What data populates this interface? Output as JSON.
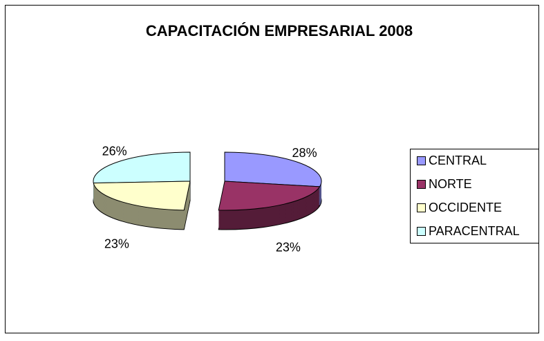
{
  "chart_data": {
    "type": "pie3d",
    "title": "CAPACITACIÓN EMPRESARIAL 2008",
    "categories": [
      "CENTRAL",
      "NORTE",
      "OCCIDENTE",
      "PARACENTRAL"
    ],
    "values": [
      28,
      23,
      23,
      26
    ],
    "value_labels": [
      "28%",
      "23%",
      "23%",
      "26%"
    ],
    "colors": [
      "#9999ff",
      "#993366",
      "#ffffcc",
      "#ccffff"
    ],
    "legend": "right"
  }
}
